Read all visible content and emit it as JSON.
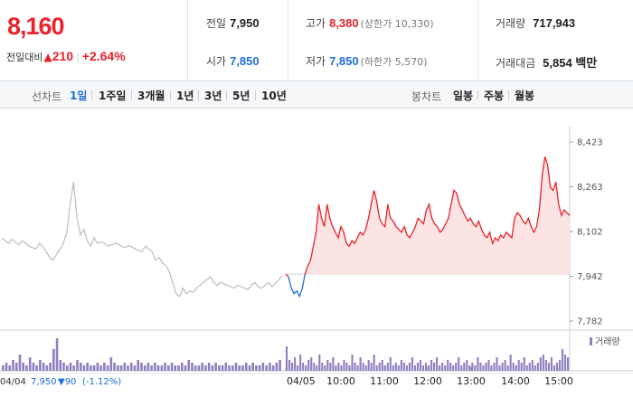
{
  "header": {
    "price": "8,160",
    "change_label": "전일대비",
    "change_amount": "210",
    "change_pct": "+2.64%",
    "prev_close": {
      "label": "전일",
      "value": "7,950"
    },
    "open": {
      "label": "시가",
      "value": "7,850"
    },
    "high": {
      "label": "고가",
      "value": "8,380",
      "limit": "(상한가 10,330)"
    },
    "low": {
      "label": "저가",
      "value": "7,850",
      "limit": "(하한가 5,570)"
    },
    "volume": {
      "label": "거래량",
      "value": "717,943"
    },
    "amount": {
      "label": "거래대금",
      "value": "5,854 백만"
    }
  },
  "tabs": {
    "line_label": "선차트",
    "line_tabs": [
      "1일",
      "1주일",
      "3개월",
      "1년",
      "3년",
      "5년",
      "10년"
    ],
    "candle_label": "봉차트",
    "candle_tabs": [
      "일봉",
      "주봉",
      "월봉"
    ]
  },
  "colors": {
    "up": "#e8232b",
    "down": "#1e6fd9",
    "prev_line": "#e8a0a0",
    "prev_series": "#bdbdbd",
    "volume": "#8f7fbf"
  },
  "chart_data": {
    "type": "line",
    "title": "",
    "ylim": [
      7782,
      8423
    ],
    "y_ticks": [
      8423,
      8263,
      8102,
      7942,
      7782
    ],
    "y_tick_labels": [
      "8,423",
      "8,263",
      "8,102",
      "7,942",
      "7,782"
    ],
    "baseline": 7950,
    "volume_legend": "거래량",
    "time_ticks": [
      "10:00",
      "11:00",
      "12:00",
      "13:00",
      "14:00",
      "15:00"
    ],
    "prev_day": {
      "date": "04/04",
      "close": "7,950",
      "change": "90",
      "change_pct": "(-1.12%)",
      "values": [
        8080,
        8070,
        8060,
        8075,
        8065,
        8055,
        8070,
        8060,
        8050,
        8045,
        8040,
        8060,
        8050,
        8030,
        8010,
        8000,
        8020,
        8040,
        8060,
        8100,
        8200,
        8280,
        8150,
        8090,
        8110,
        8070,
        8050,
        8080,
        8060,
        8065,
        8060,
        8050,
        8055,
        8060,
        8058,
        8050,
        8045,
        8052,
        8048,
        8040,
        8035,
        8030,
        8050,
        8040,
        8030,
        8000,
        8010,
        7990,
        7980,
        7960,
        7920,
        7880,
        7870,
        7900,
        7880,
        7890,
        7885,
        7900,
        7910,
        7920,
        7930,
        7940,
        7920,
        7910,
        7920,
        7915,
        7910,
        7905,
        7900,
        7910,
        7905,
        7900,
        7895,
        7910,
        7920,
        7905,
        7900,
        7910,
        7920,
        7905,
        7915,
        7930,
        7945
      ]
    },
    "today": {
      "date": "04/05",
      "values": [
        7950,
        7940,
        7900,
        7880,
        7890,
        7870,
        7900,
        7950,
        7980,
        8000,
        8050,
        8100,
        8200,
        8150,
        8120,
        8200,
        8150,
        8120,
        8100,
        8080,
        8120,
        8100,
        8060,
        8050,
        8070,
        8060,
        8080,
        8100,
        8090,
        8110,
        8150,
        8200,
        8250,
        8210,
        8150,
        8130,
        8120,
        8200,
        8150,
        8140,
        8120,
        8110,
        8100,
        8120,
        8090,
        8080,
        8100,
        8120,
        8150,
        8140,
        8130,
        8180,
        8200,
        8150,
        8130,
        8120,
        8100,
        8110,
        8130,
        8150,
        8200,
        8250,
        8240,
        8200,
        8180,
        8160,
        8140,
        8150,
        8130,
        8120,
        8140,
        8110,
        8090,
        8080,
        8100,
        8060,
        8080,
        8070,
        8090,
        8080,
        8100,
        8090,
        8080,
        8150,
        8170,
        8160,
        8140,
        8130,
        8150,
        8120,
        8100,
        8120,
        8180,
        8300,
        8370,
        8340,
        8260,
        8250,
        8280,
        8200,
        8160,
        8180,
        8170,
        8160
      ]
    },
    "volume": {
      "prev_day": [
        2,
        3,
        2,
        4,
        3,
        6,
        3,
        2,
        5,
        3,
        2,
        4,
        3,
        2,
        3,
        8,
        12,
        4,
        3,
        2,
        3,
        2,
        4,
        3,
        2,
        3,
        2,
        2,
        3,
        2,
        3,
        2,
        5,
        3,
        2,
        2,
        3,
        2,
        3,
        2,
        4,
        3,
        2,
        3,
        2,
        3,
        2,
        2,
        3,
        2,
        3,
        2,
        2,
        3,
        2,
        4,
        3,
        2,
        2,
        3,
        2,
        3,
        2,
        3,
        2,
        2,
        3,
        2,
        2,
        3,
        2,
        2,
        3,
        2,
        3,
        2,
        2,
        3,
        2,
        3,
        2,
        3,
        4
      ],
      "today": [
        9,
        4,
        3,
        5,
        2,
        6,
        3,
        2,
        4,
        5,
        3,
        2,
        6,
        3,
        2,
        4,
        3,
        5,
        2,
        3,
        2,
        4,
        3,
        2,
        6,
        3,
        2,
        5,
        3,
        2,
        4,
        3,
        6,
        2,
        3,
        4,
        2,
        3,
        5,
        2,
        3,
        2,
        4,
        3,
        2,
        3,
        5,
        2,
        3,
        4,
        2,
        3,
        2,
        4,
        3,
        5,
        2,
        3,
        2,
        4,
        3,
        2,
        3,
        5,
        2,
        3,
        4,
        2,
        3,
        2,
        5,
        3,
        2,
        3,
        4,
        2,
        3,
        5,
        2,
        3,
        4,
        2,
        6,
        3,
        2,
        4,
        3,
        5,
        2,
        3,
        4,
        2,
        3,
        5,
        6,
        4,
        3,
        5,
        2,
        3,
        4,
        8,
        6,
        5
      ]
    }
  }
}
